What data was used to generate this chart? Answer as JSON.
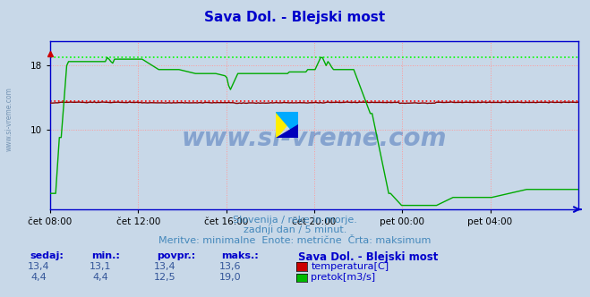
{
  "title": "Sava Dol. - Blejski most",
  "title_color": "#0000cc",
  "bg_color": "#c8d8e8",
  "plot_bg_color": "#c8d8e8",
  "xlabel_ticks": [
    "čet 08:00",
    "čet 12:00",
    "čet 16:00",
    "čet 20:00",
    "pet 00:00",
    "pet 04:00"
  ],
  "ylim": [
    0,
    21
  ],
  "grid_color": "#ff9999",
  "temp_color": "#880000",
  "flow_color": "#00aa00",
  "temp_max_color": "#ff0000",
  "flow_max_color": "#00ff00",
  "axis_color": "#0000cc",
  "watermark": "www.si-vreme.com",
  "watermark_color": "#2255aa",
  "subtitle1": "Slovenija / reke in morje.",
  "subtitle2": "zadnji dan / 5 minut.",
  "subtitle3": "Meritve: minimalne  Enote: metrične  Črta: maksimum",
  "subtitle_color": "#4488bb",
  "table_headers": [
    "sedaj:",
    "min.:",
    "povpr.:",
    "maks.:"
  ],
  "table_header_color": "#0000cc",
  "table_values_temp": [
    "13,4",
    "13,1",
    "13,4",
    "13,6"
  ],
  "table_values_flow": [
    "4,4",
    "4,4",
    "12,5",
    "19,0"
  ],
  "table_value_color": "#335599",
  "legend_title": "Sava Dol. - Blejski most",
  "legend_temp": "temperatura[C]",
  "legend_flow": "pretok[m3/s]",
  "temp_max_line": 13.6,
  "flow_max_line": 19.0,
  "n_points": 288,
  "side_watermark": "www.si-vreme.com",
  "side_watermark_color": "#6688aa"
}
